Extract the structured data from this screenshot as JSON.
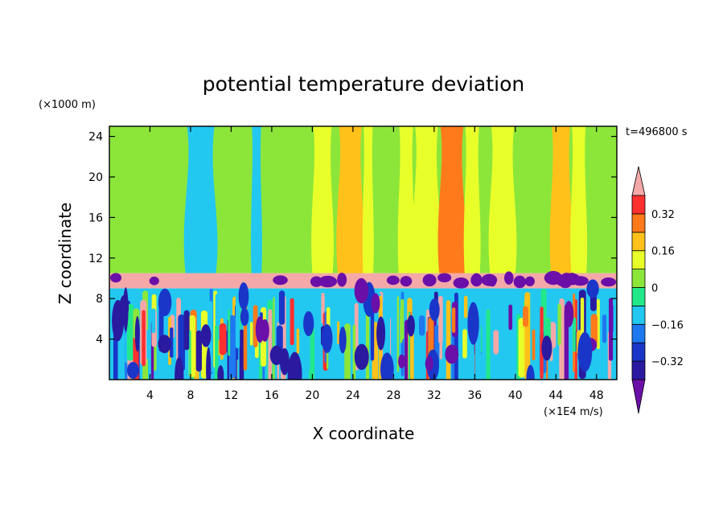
{
  "chart_data": {
    "type": "heatmap",
    "title": "potential temperature deviation",
    "xlabel": "X coordinate",
    "ylabel": "Z coordinate",
    "x_units": "(×1E4 m/s)",
    "y_units": "(×1000 m)",
    "time_label": "t=496800 s",
    "xlim": [
      0,
      50
    ],
    "ylim": [
      0,
      25
    ],
    "x_ticks": [
      4,
      8,
      12,
      16,
      20,
      24,
      28,
      32,
      36,
      40,
      44,
      48
    ],
    "y_ticks": [
      4,
      8,
      12,
      16,
      20,
      24
    ],
    "colorbar": {
      "levels": [
        -0.4,
        -0.32,
        -0.24,
        -0.16,
        -0.08,
        0,
        0.08,
        0.16,
        0.24,
        0.32,
        0.4
      ],
      "colors": [
        "#6a0fa8",
        "#2a1aa0",
        "#1a36c8",
        "#1e78f0",
        "#22c8f0",
        "#22e88a",
        "#8ce63a",
        "#e8ff2a",
        "#ffc11a",
        "#ff7a1a",
        "#ff3030",
        "#f4a8a8"
      ],
      "labels": [
        {
          "value": 0.32,
          "text": "0.32"
        },
        {
          "value": 0.16,
          "text": "0.16"
        },
        {
          "value": 0,
          "text": "0"
        },
        {
          "value": -0.16,
          "text": "−0.16"
        },
        {
          "value": -0.32,
          "text": "−0.32"
        }
      ],
      "extend": "both"
    },
    "grid": false,
    "upper_layer": {
      "z_range": [
        10.5,
        25
      ],
      "background_value": 0.02,
      "bands": [
        {
          "x0": 7.5,
          "x1": 10.5,
          "value": -0.1
        },
        {
          "x0": 14,
          "x1": 15,
          "value": -0.1
        },
        {
          "x0": 20,
          "x1": 22,
          "value": 0.1
        },
        {
          "x0": 22.5,
          "x1": 25,
          "value": 0.18
        },
        {
          "x0": 25,
          "x1": 26,
          "value": 0.1
        },
        {
          "x0": 28.5,
          "x1": 30,
          "value": 0.1
        },
        {
          "x0": 30,
          "x1": 32.5,
          "value": 0.08
        },
        {
          "x0": 32.5,
          "x1": 35,
          "value": 0.3
        },
        {
          "x0": 35,
          "x1": 36.5,
          "value": 0.08
        },
        {
          "x0": 37.5,
          "x1": 40,
          "value": 0.1
        },
        {
          "x0": 43.5,
          "x1": 45.5,
          "value": 0.18
        },
        {
          "x0": 45.5,
          "x1": 47,
          "value": 0.1
        }
      ]
    },
    "inversion_layer": {
      "z_range": [
        9,
        10.5
      ],
      "value": 0.45
    },
    "lower_layer": {
      "z_range": [
        0,
        9
      ],
      "pattern": "turbulent"
    }
  }
}
